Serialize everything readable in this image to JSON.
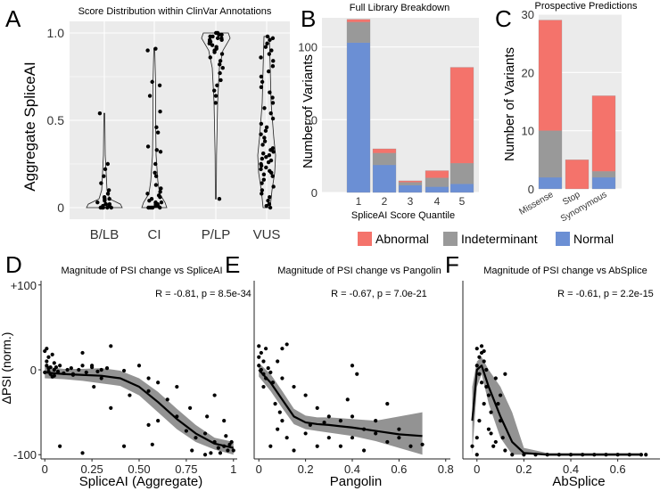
{
  "chart_data": [
    {
      "panel": "A",
      "type": "violin",
      "title": "Score Distribution within ClinVar Annotations",
      "xlabel": "",
      "ylabel": "Aggregate SpliceAI",
      "ylim": [
        0,
        1
      ],
      "yticks": [
        "0",
        "0.5",
        "1.0"
      ],
      "categories": [
        "B/LB",
        "CI",
        "P/LP",
        "VUS"
      ],
      "series": [
        {
          "name": "B/LB",
          "points": [
            0.54,
            0.25,
            0.22,
            0.18,
            0.14,
            0.1,
            0.08,
            0.06,
            0.05,
            0.04,
            0.03,
            0.02,
            0.02,
            0.01,
            0.01,
            0.0,
            0.0,
            0.0,
            0.0,
            0.0,
            0.02,
            0.05
          ]
        },
        {
          "name": "CI",
          "points": [
            0.91,
            0.9,
            0.72,
            0.7,
            0.64,
            0.55,
            0.46,
            0.43,
            0.35,
            0.33,
            0.32,
            0.25,
            0.2,
            0.18,
            0.13,
            0.11,
            0.09,
            0.08,
            0.07,
            0.06,
            0.05,
            0.04,
            0.03,
            0.03,
            0.02,
            0.02,
            0.01,
            0.01,
            0.0,
            0.0,
            0.0,
            0.0,
            0.0
          ]
        },
        {
          "name": "P/LP",
          "points": [
            1.0,
            1.0,
            0.99,
            0.99,
            0.98,
            0.98,
            0.97,
            0.97,
            0.96,
            0.96,
            0.95,
            0.95,
            0.94,
            0.93,
            0.92,
            0.91,
            0.9,
            0.89,
            0.88,
            0.86,
            0.84,
            0.82,
            0.8,
            0.77,
            0.73,
            0.7,
            0.67,
            0.64,
            0.6,
            0.05
          ]
        },
        {
          "name": "VUS",
          "points": [
            0.98,
            0.97,
            0.96,
            0.94,
            0.92,
            0.9,
            0.88,
            0.86,
            0.84,
            0.81,
            0.78,
            0.75,
            0.72,
            0.69,
            0.66,
            0.63,
            0.6,
            0.57,
            0.54,
            0.51,
            0.48,
            0.46,
            0.44,
            0.42,
            0.4,
            0.38,
            0.36,
            0.34,
            0.33,
            0.32,
            0.31,
            0.3,
            0.29,
            0.28,
            0.27,
            0.26,
            0.25,
            0.24,
            0.23,
            0.22,
            0.21,
            0.2,
            0.19,
            0.18,
            0.16,
            0.14,
            0.12,
            0.1,
            0.08,
            0.06,
            0.04,
            0.02,
            0.01,
            0.0
          ]
        }
      ]
    },
    {
      "panel": "B",
      "type": "stacked-bar",
      "title": "Full Library Breakdown",
      "xlabel": "SpliceAI Score Quantile",
      "ylabel": "Number of Variants",
      "ylim": [
        0,
        120
      ],
      "yticks": [
        "0",
        "50",
        "100"
      ],
      "categories": [
        "1",
        "2",
        "3",
        "4",
        "5"
      ],
      "series": [
        {
          "name": "Normal",
          "values": [
            103,
            19,
            5,
            4,
            6
          ]
        },
        {
          "name": "Indeterminant",
          "values": [
            14,
            8,
            2,
            6,
            14
          ]
        },
        {
          "name": "Abnormal",
          "values": [
            2,
            3,
            1,
            5,
            66
          ]
        }
      ]
    },
    {
      "panel": "C",
      "type": "stacked-bar",
      "title": "Prospective Predictions",
      "xlabel": "",
      "ylabel": "Number of Variants",
      "ylim": [
        0,
        30
      ],
      "yticks": [
        "0",
        "10",
        "20",
        "30"
      ],
      "categories": [
        "Missense",
        "Stop",
        "Synonymous"
      ],
      "series": [
        {
          "name": "Normal",
          "values": [
            2,
            0,
            2
          ]
        },
        {
          "name": "Indeterminant",
          "values": [
            8,
            0,
            1
          ]
        },
        {
          "name": "Abnormal",
          "values": [
            19,
            5,
            13
          ]
        }
      ]
    },
    {
      "panel": "D",
      "type": "scatter",
      "title": "Magnitude of PSI change vs SpliceAI",
      "xlabel": "SpliceAI (Aggregate)",
      "ylabel": "ΔPSI (norm.)",
      "xlim": [
        -0.02,
        1.02
      ],
      "ylim": [
        -105,
        105
      ],
      "xticks": [
        "0",
        "0.25",
        "0.50",
        "0.75",
        "1"
      ],
      "yticks": [
        "+100",
        "0",
        "-100"
      ],
      "stat": "R = -0.81, p = 8.5e-34",
      "fit": [
        [
          0,
          -3
        ],
        [
          0.1,
          -5
        ],
        [
          0.2,
          -6
        ],
        [
          0.3,
          -7
        ],
        [
          0.4,
          -10
        ],
        [
          0.5,
          -20
        ],
        [
          0.6,
          -38
        ],
        [
          0.7,
          -58
        ],
        [
          0.8,
          -75
        ],
        [
          0.9,
          -87
        ],
        [
          1.0,
          -92
        ]
      ],
      "band": [
        [
          0,
          4,
          -10
        ],
        [
          0.1,
          1,
          -11
        ],
        [
          0.2,
          1,
          -13
        ],
        [
          0.3,
          2,
          -16
        ],
        [
          0.4,
          -1,
          -19
        ],
        [
          0.5,
          -10,
          -30
        ],
        [
          0.6,
          -26,
          -50
        ],
        [
          0.7,
          -46,
          -70
        ],
        [
          0.8,
          -65,
          -85
        ],
        [
          0.9,
          -80,
          -94
        ],
        [
          1.0,
          -85,
          -100
        ]
      ],
      "points": [
        [
          0.01,
          5
        ],
        [
          0.0,
          -3
        ],
        [
          0.02,
          2
        ],
        [
          0.03,
          -5
        ],
        [
          0.01,
          10
        ],
        [
          0.02,
          15
        ],
        [
          0.04,
          -8
        ],
        [
          0.05,
          0
        ],
        [
          0.06,
          3
        ],
        [
          0.07,
          -2
        ],
        [
          0.08,
          5
        ],
        [
          0.1,
          -4
        ],
        [
          0.12,
          0
        ],
        [
          0.14,
          2
        ],
        [
          0.15,
          -6
        ],
        [
          0.18,
          0
        ],
        [
          0.2,
          5
        ],
        [
          0.22,
          -3
        ],
        [
          0.25,
          3
        ],
        [
          0.28,
          -2
        ],
        [
          0.3,
          0
        ],
        [
          0.33,
          2
        ],
        [
          0.35,
          28
        ],
        [
          0.42,
          -1
        ],
        [
          0.5,
          5
        ],
        [
          0.55,
          -10
        ],
        [
          0.02,
          -2
        ],
        [
          0.03,
          3
        ],
        [
          0.05,
          -7
        ],
        [
          0.01,
          25
        ],
        [
          0.0,
          22
        ],
        [
          0.04,
          18
        ],
        [
          0.2,
          20
        ],
        [
          0.25,
          5
        ],
        [
          0.26,
          -20
        ],
        [
          0.35,
          -45
        ],
        [
          0.45,
          -30
        ],
        [
          0.55,
          -65
        ],
        [
          0.6,
          -60
        ],
        [
          0.65,
          -35
        ],
        [
          0.7,
          -55
        ],
        [
          0.75,
          -72
        ],
        [
          0.8,
          -80
        ],
        [
          0.85,
          -75
        ],
        [
          0.9,
          -85
        ],
        [
          0.92,
          -92
        ],
        [
          0.95,
          -90
        ],
        [
          0.97,
          -95
        ],
        [
          0.98,
          -88
        ],
        [
          1.0,
          -95
        ],
        [
          0.99,
          -85
        ],
        [
          0.96,
          -78
        ],
        [
          0.93,
          -98
        ],
        [
          0.88,
          -98
        ],
        [
          0.85,
          -100
        ],
        [
          0.78,
          -95
        ],
        [
          0.08,
          -90
        ],
        [
          0.2,
          -98
        ],
        [
          0.42,
          -90
        ],
        [
          0.57,
          -88
        ],
        [
          0.95,
          -60
        ],
        [
          0.9,
          -30
        ],
        [
          0.77,
          -45
        ],
        [
          0.7,
          -20
        ],
        [
          0.86,
          -55
        ],
        [
          0.55,
          -25
        ],
        [
          0.15,
          -5
        ],
        [
          0.05,
          8
        ],
        [
          0.3,
          -10
        ],
        [
          0.6,
          -15
        ]
      ]
    },
    {
      "panel": "E",
      "type": "scatter",
      "title": "Magnitude of PSI change vs Pangolin",
      "xlabel": "Pangolin",
      "ylabel": "",
      "xlim": [
        -0.02,
        0.82
      ],
      "ylim": [
        -105,
        105
      ],
      "xticks": [
        "0",
        "0.2",
        "0.4",
        "0.6",
        "0.8"
      ],
      "yticks": [],
      "stat": "R = -0.67, p = 7.0e-21",
      "fit": [
        [
          0,
          0
        ],
        [
          0.05,
          -15
        ],
        [
          0.1,
          -35
        ],
        [
          0.15,
          -55
        ],
        [
          0.2,
          -62
        ],
        [
          0.25,
          -64
        ],
        [
          0.3,
          -65
        ],
        [
          0.4,
          -68
        ],
        [
          0.5,
          -72
        ],
        [
          0.6,
          -76
        ],
        [
          0.7,
          -78
        ]
      ],
      "band": [
        [
          0,
          8,
          -8
        ],
        [
          0.05,
          -5,
          -25
        ],
        [
          0.1,
          -25,
          -45
        ],
        [
          0.15,
          -46,
          -64
        ],
        [
          0.2,
          -54,
          -70
        ],
        [
          0.25,
          -56,
          -72
        ],
        [
          0.3,
          -56,
          -74
        ],
        [
          0.4,
          -58,
          -78
        ],
        [
          0.5,
          -60,
          -84
        ],
        [
          0.6,
          -55,
          -92
        ],
        [
          0.7,
          -50,
          -100
        ]
      ],
      "points": [
        [
          0.0,
          5
        ],
        [
          0.01,
          0
        ],
        [
          0.02,
          -5
        ],
        [
          0.0,
          15
        ],
        [
          0.01,
          20
        ],
        [
          0.03,
          -10
        ],
        [
          0.04,
          2
        ],
        [
          0.05,
          -3
        ],
        [
          0.06,
          -15
        ],
        [
          0.08,
          10
        ],
        [
          0.1,
          25
        ],
        [
          0.12,
          30
        ],
        [
          0.15,
          -20
        ],
        [
          0.2,
          -30
        ],
        [
          0.25,
          -45
        ],
        [
          0.3,
          -55
        ],
        [
          0.35,
          -60
        ],
        [
          0.4,
          -55
        ],
        [
          0.45,
          -70
        ],
        [
          0.5,
          -75
        ],
        [
          0.55,
          -85
        ],
        [
          0.6,
          -80
        ],
        [
          0.65,
          -90
        ],
        [
          0.7,
          -88
        ],
        [
          0.1,
          -60
        ],
        [
          0.12,
          -80
        ],
        [
          0.15,
          -95
        ],
        [
          0.2,
          -75
        ],
        [
          0.22,
          -65
        ],
        [
          0.28,
          -62
        ],
        [
          0.05,
          -90
        ],
        [
          0.08,
          -70
        ],
        [
          0.3,
          -80
        ],
        [
          0.35,
          -90
        ],
        [
          0.45,
          -95
        ],
        [
          0.5,
          -60
        ],
        [
          0.4,
          -80
        ],
        [
          0.25,
          -90
        ],
        [
          0.02,
          10
        ],
        [
          0.03,
          25
        ],
        [
          0.0,
          28
        ],
        [
          0.02,
          -20
        ],
        [
          0.07,
          -40
        ],
        [
          0.09,
          -50
        ],
        [
          0.1,
          -10
        ],
        [
          0.4,
          5
        ],
        [
          0.42,
          -5
        ],
        [
          0.38,
          -35
        ],
        [
          0.55,
          -40
        ],
        [
          0.6,
          -70
        ]
      ]
    },
    {
      "panel": "F",
      "type": "scatter",
      "title": "Magnitude of PSI change vs AbSplice",
      "xlabel": "AbSplice",
      "ylabel": "",
      "xlim": [
        -0.06,
        0.78
      ],
      "ylim": [
        -105,
        105
      ],
      "xticks": [
        "0",
        "0.2",
        "0.4",
        "0.6"
      ],
      "yticks": [],
      "stat": "R = -0.61, p = 2.2e-15",
      "fit": [
        [
          -0.02,
          -60
        ],
        [
          0.0,
          0
        ],
        [
          0.02,
          5
        ],
        [
          0.05,
          -20
        ],
        [
          0.1,
          -55
        ],
        [
          0.15,
          -85
        ],
        [
          0.2,
          -98
        ],
        [
          0.3,
          -100
        ],
        [
          0.5,
          -100
        ],
        [
          0.7,
          -100
        ]
      ],
      "band": [
        [
          -0.02,
          -20,
          -100
        ],
        [
          0.0,
          10,
          -20
        ],
        [
          0.02,
          15,
          -5
        ],
        [
          0.05,
          0,
          -40
        ],
        [
          0.1,
          -20,
          -80
        ],
        [
          0.15,
          -50,
          -100
        ],
        [
          0.2,
          -92,
          -100
        ],
        [
          0.3,
          -98,
          -100
        ],
        [
          0.5,
          -98,
          -100
        ],
        [
          0.7,
          -98,
          -100
        ]
      ],
      "points": [
        [
          0.0,
          5
        ],
        [
          0.01,
          15
        ],
        [
          0.0,
          25
        ],
        [
          0.02,
          20
        ],
        [
          0.01,
          -5
        ],
        [
          0.03,
          10
        ],
        [
          0.02,
          -15
        ],
        [
          0.04,
          0
        ],
        [
          0.05,
          -30
        ],
        [
          0.06,
          -50
        ],
        [
          0.05,
          -70
        ],
        [
          0.07,
          -90
        ],
        [
          0.08,
          -85
        ],
        [
          0.1,
          -60
        ],
        [
          0.12,
          -95
        ],
        [
          0.15,
          -100
        ],
        [
          0.2,
          -100
        ],
        [
          0.3,
          -100
        ],
        [
          0.4,
          -100
        ],
        [
          0.5,
          -100
        ],
        [
          0.6,
          -100
        ],
        [
          0.7,
          -100
        ],
        [
          -0.02,
          -90
        ],
        [
          0.0,
          -80
        ],
        [
          0.01,
          -60
        ],
        [
          0.03,
          -40
        ],
        [
          0.04,
          -20
        ],
        [
          0.1,
          -30
        ],
        [
          0.12,
          -5
        ],
        [
          0.02,
          28
        ],
        [
          0.03,
          22
        ],
        [
          0.25,
          -100
        ],
        [
          0.35,
          -100
        ],
        [
          0.45,
          -100
        ],
        [
          0.55,
          -100
        ],
        [
          0.65,
          -100
        ],
        [
          0.72,
          -100
        ],
        [
          0.08,
          -10
        ],
        [
          0.09,
          -40
        ],
        [
          0.0,
          -100
        ],
        [
          0.06,
          -75
        ],
        [
          0.11,
          -80
        ]
      ]
    }
  ],
  "legend": {
    "entries": [
      {
        "label": "Abnormal",
        "color": "#f4736b"
      },
      {
        "label": "Indeterminant",
        "color": "#999999"
      },
      {
        "label": "Normal",
        "color": "#6b8fd4"
      }
    ]
  },
  "colors": {
    "abnormal": "#f4736b",
    "indeterminant": "#999999",
    "normal": "#6b8fd4",
    "panel_bg": "#ebebeb",
    "grid": "#ffffff",
    "band": "#808080"
  }
}
